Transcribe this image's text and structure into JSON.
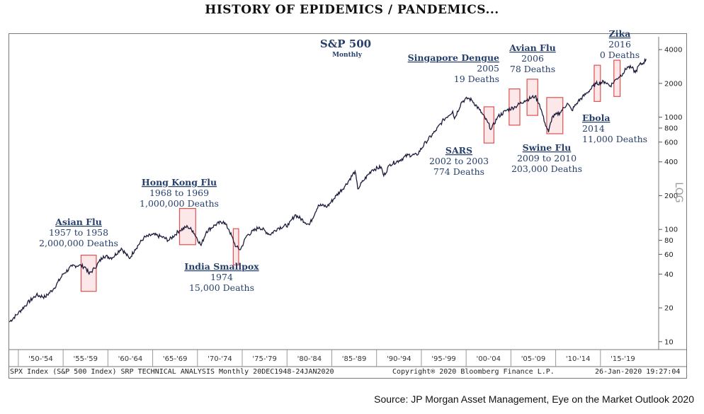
{
  "title": "HISTORY OF EPIDEMICS / PANDEMICS...",
  "source": "Source:  JP Morgan Asset Management, Eye on the Market Outlook 2020",
  "footer": {
    "left": "SPX Index (S&P 500 Index) SRP TECHNICAL ANALYSIS  Monthly 20DEC1948-24JAN2020",
    "center": "Copyright® 2020 Bloomberg Finance L.P.",
    "right": "26-Jan-2020 19:27:04"
  },
  "colors": {
    "line": "#1c1c3c",
    "annotation": "#27406b",
    "box_fill": "#f9d6d6",
    "box_stroke": "#e05050"
  },
  "chart_data": {
    "type": "line",
    "title": "S&P 500",
    "subtitle": "Monthly",
    "y_scale": "log",
    "ylabel": "LOG",
    "xlim": [
      1948.9,
      2021.5
    ],
    "ylim": [
      8.5,
      5200
    ],
    "y_ticks": [
      10,
      20,
      40,
      60,
      80,
      100,
      200,
      400,
      600,
      800,
      1000,
      2000,
      4000
    ],
    "y_tick_labels": [
      "10",
      "20",
      "40",
      "60",
      "80",
      "100",
      "200",
      "400",
      "600",
      "800",
      "1000",
      "2000",
      "4000"
    ],
    "x_tick_labels": [
      "'50-'54",
      "'55-'59",
      "'60-'64",
      "'65-'69",
      "'70-'74",
      "'75-'79",
      "'80-'84",
      "'85-'89",
      "'90-'94",
      "'95-'99",
      "'00-'04",
      "'05-'09",
      "'10-'14",
      "'15-'19"
    ],
    "x_ticks": [
      1950,
      1955,
      1960,
      1965,
      1970,
      1975,
      1980,
      1985,
      1990,
      1995,
      2000,
      2005,
      2010,
      2015
    ],
    "series": [
      {
        "x": [
          1949.0,
          1950.0,
          1951.0,
          1952.0,
          1953.0,
          1954.0,
          1955.0,
          1956.0,
          1956.8,
          1957.5,
          1957.9,
          1958.5,
          1959.5,
          1960.5,
          1961.5,
          1962.4,
          1963.0,
          1964.0,
          1965.0,
          1966.0,
          1966.8,
          1968.0,
          1968.9,
          1969.5,
          1970.4,
          1971.0,
          1972.0,
          1972.9,
          1973.5,
          1974.3,
          1974.8,
          1975.5,
          1976.9,
          1978.1,
          1979.0,
          1980.2,
          1980.9,
          1982.5,
          1983.5,
          1984.5,
          1985.5,
          1986.5,
          1987.6,
          1987.9,
          1988.5,
          1989.5,
          1990.5,
          1990.8,
          1991.5,
          1992.5,
          1993.5,
          1994.5,
          1995.5,
          1996.5,
          1997.5,
          1998.5,
          1998.7,
          1999.5,
          2000.2,
          2000.7,
          2001.5,
          2002.4,
          2002.8,
          2003.5,
          2004.5,
          2005.5,
          2006.5,
          2007.7,
          2008.2,
          2008.8,
          2009.2,
          2009.6,
          2010.5,
          2011.3,
          2011.8,
          2012.5,
          2013.5,
          2014.5,
          2015.5,
          2016.1,
          2016.8,
          2017.5,
          2018.0,
          2018.5,
          2018.9,
          2019.3,
          2019.8,
          2020.1
        ],
        "y": [
          15,
          18,
          22,
          26,
          25,
          30,
          40,
          47,
          48,
          46,
          40,
          45,
          58,
          56,
          68,
          55,
          66,
          84,
          90,
          86,
          80,
          98,
          106,
          97,
          72,
          96,
          110,
          118,
          100,
          70,
          66,
          88,
          105,
          90,
          103,
          110,
          135,
          110,
          165,
          160,
          200,
          245,
          330,
          230,
          270,
          340,
          360,
          300,
          380,
          410,
          460,
          460,
          600,
          740,
          950,
          1130,
          970,
          1370,
          1480,
          1400,
          1160,
          900,
          780,
          1000,
          1150,
          1240,
          1400,
          1540,
          1300,
          890,
          735,
          1000,
          1100,
          1330,
          1150,
          1380,
          1650,
          1990,
          2070,
          1900,
          2200,
          2450,
          2800,
          2750,
          2500,
          2900,
          3050,
          3300
        ]
      }
    ],
    "events": [
      {
        "name": "Asian Flu",
        "dates": "1957 to 1958",
        "deaths": "2,000,000 Deaths",
        "start": 1957.0,
        "end": 1958.7
      },
      {
        "name": "Hong Kong Flu",
        "dates": "1968 to 1969",
        "deaths": "1,000,000 Deaths",
        "start": 1968.0,
        "end": 1969.8
      },
      {
        "name": "India Smallpox",
        "dates": "1974",
        "deaths": "15,000 Deaths",
        "start": 1974.0,
        "end": 1974.6
      },
      {
        "name": "SARS",
        "dates": "2002 to 2003",
        "deaths": "774 Deaths",
        "start": 2002.0,
        "end": 2003.1
      },
      {
        "name": "Singapore Dengue",
        "dates": "2005",
        "deaths": "19 Deaths",
        "start": 2004.8,
        "end": 2006.0
      },
      {
        "name": "Avian Flu",
        "dates": "2006",
        "deaths": "78 Deaths",
        "start": 2006.8,
        "end": 2008.0
      },
      {
        "name": "Swine Flu",
        "dates": "2009 to 2010",
        "deaths": "203,000 Deaths",
        "start": 2009.0,
        "end": 2010.8
      },
      {
        "name": "Ebola",
        "dates": "2014",
        "deaths": "11,000 Deaths",
        "start": 2014.3,
        "end": 2015.0
      },
      {
        "name": "Zika",
        "dates": "2016",
        "deaths": "0 Deaths",
        "start": 2016.5,
        "end": 2017.2
      }
    ]
  }
}
